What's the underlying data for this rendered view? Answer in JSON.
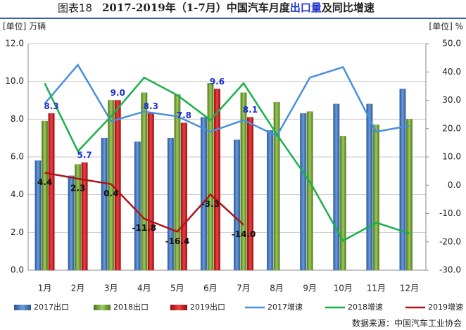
{
  "chart_data": {
    "type": "bar",
    "figure_label": "图表18",
    "title": [
      "2017-2019年（1-7月）中国汽车月度",
      "出口量",
      "及同比增速"
    ],
    "y_label": "[单位] 万辆",
    "y2_label": "[单位] %",
    "source": "数据来源：中国汽车工业协会",
    "categories": [
      "1月",
      "2月",
      "3月",
      "4月",
      "5月",
      "6月",
      "7月",
      "8月",
      "9月",
      "10月",
      "11月",
      "12月"
    ],
    "ylim": [
      0,
      12
    ],
    "yticks": [
      {
        "value": 0,
        "label": "0.0"
      },
      {
        "value": 2,
        "label": "2.0"
      },
      {
        "value": 4,
        "label": "4.0"
      },
      {
        "value": 6,
        "label": "6.0"
      },
      {
        "value": 8,
        "label": "8.0"
      },
      {
        "value": 10,
        "label": "10.0"
      },
      {
        "value": 12,
        "label": "12.0"
      }
    ],
    "y2lim": [
      -30,
      50
    ],
    "y2ticks": [
      {
        "value": -30,
        "label": "-30.0"
      },
      {
        "value": -20,
        "label": "-20.0"
      },
      {
        "value": -10,
        "label": "-10.0"
      },
      {
        "value": 0,
        "label": "0.0"
      },
      {
        "value": 10,
        "label": "10.0"
      },
      {
        "value": 20,
        "label": "20.0"
      },
      {
        "value": 30,
        "label": "30.0"
      },
      {
        "value": 40,
        "label": "40.0"
      },
      {
        "value": 50,
        "label": "50.0"
      }
    ],
    "grid": true,
    "series": [
      {
        "name": "2017出口",
        "type": "bar",
        "color": "#3f72b8",
        "values": [
          5.8,
          5.0,
          7.0,
          6.8,
          7.0,
          8.1,
          6.9,
          7.4,
          8.3,
          8.8,
          8.8,
          9.6
        ]
      },
      {
        "name": "2018出口",
        "type": "bar",
        "color": "#6f9e33",
        "values": [
          7.9,
          5.6,
          9.0,
          9.4,
          9.3,
          9.9,
          9.4,
          8.9,
          8.4,
          7.1,
          7.7,
          8.0
        ]
      },
      {
        "name": "2019出口",
        "type": "bar",
        "color": "#c4161c",
        "values": [
          8.3,
          5.7,
          9.0,
          8.3,
          7.8,
          9.6,
          8.1,
          null,
          null,
          null,
          null,
          null
        ],
        "value_labels": [
          "8.3",
          "5.7",
          "9.0",
          "8.3",
          "7.8",
          "9.6",
          "8.1",
          null,
          null,
          null,
          null,
          null
        ]
      },
      {
        "name": "2017增速",
        "type": "line",
        "axis": "y2",
        "color": "#4a8fdc",
        "values": [
          28.8,
          42.5,
          22.6,
          26,
          24.3,
          18.9,
          23,
          17.4,
          38,
          41.7,
          18.9,
          21
        ]
      },
      {
        "name": "2018增速",
        "type": "line",
        "axis": "y2",
        "color": "#19b04a",
        "values": [
          36,
          12,
          24.3,
          38,
          31.8,
          23,
          36,
          18,
          1.2,
          -19.6,
          -13.2,
          -17
        ]
      },
      {
        "name": "2019增速",
        "type": "line",
        "axis": "y2",
        "color": "#b01418",
        "values": [
          4.4,
          2.3,
          0.4,
          -11.8,
          -16.4,
          -3.3,
          -14.0,
          null,
          null,
          null,
          null,
          null
        ],
        "value_labels": [
          "4.4",
          "2.3",
          "0.4",
          "-11.8",
          "-16.4",
          "-3.3",
          "-14.0",
          null,
          null,
          null,
          null,
          null
        ]
      }
    ]
  }
}
